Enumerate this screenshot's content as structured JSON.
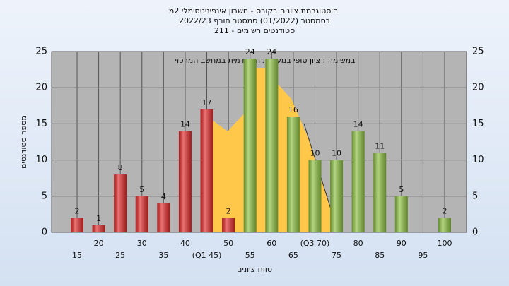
{
  "chart_data": {
    "type": "bar",
    "title": "היסטוגרמת ציונים בקורס - חשבון אינפיניטסימלי 2מ'",
    "subtitle": "בסמסטר (01/2022) סמסטר חורף 2022/23",
    "subtitle2": "סטודנטים רשומים - 211",
    "annotation": "במשימה : ציון סופי במערכת האקדמית במחשב המרכזי",
    "y_label": "מספר סטודנטים",
    "x_label": "טווח ציונים",
    "categories": [
      "15",
      "20",
      "25",
      "30",
      "35",
      "40",
      "(Q1 45)",
      "50",
      "55",
      "60",
      "65",
      "(Q3 70)",
      "75",
      "80",
      "85",
      "90",
      "95",
      "100"
    ],
    "values": [
      2,
      1,
      8,
      5,
      4,
      14,
      17,
      2,
      24,
      24,
      16,
      10,
      10,
      14,
      11,
      5,
      null,
      2
    ],
    "colors": [
      "#e02828",
      "#e02828",
      "#e02828",
      "#e02828",
      "#e02828",
      "#e02828",
      "#e02828",
      "#e02828",
      "#8cc040",
      "#8cc040",
      "#8cc040",
      "#8cc040",
      "#8cc040",
      "#8cc040",
      "#8cc040",
      "#8cc040",
      "#8cc040",
      "#8cc040"
    ],
    "ylim": [
      0,
      25
    ],
    "yticks": [
      0,
      5,
      10,
      15,
      20,
      25
    ],
    "grid": true
  }
}
